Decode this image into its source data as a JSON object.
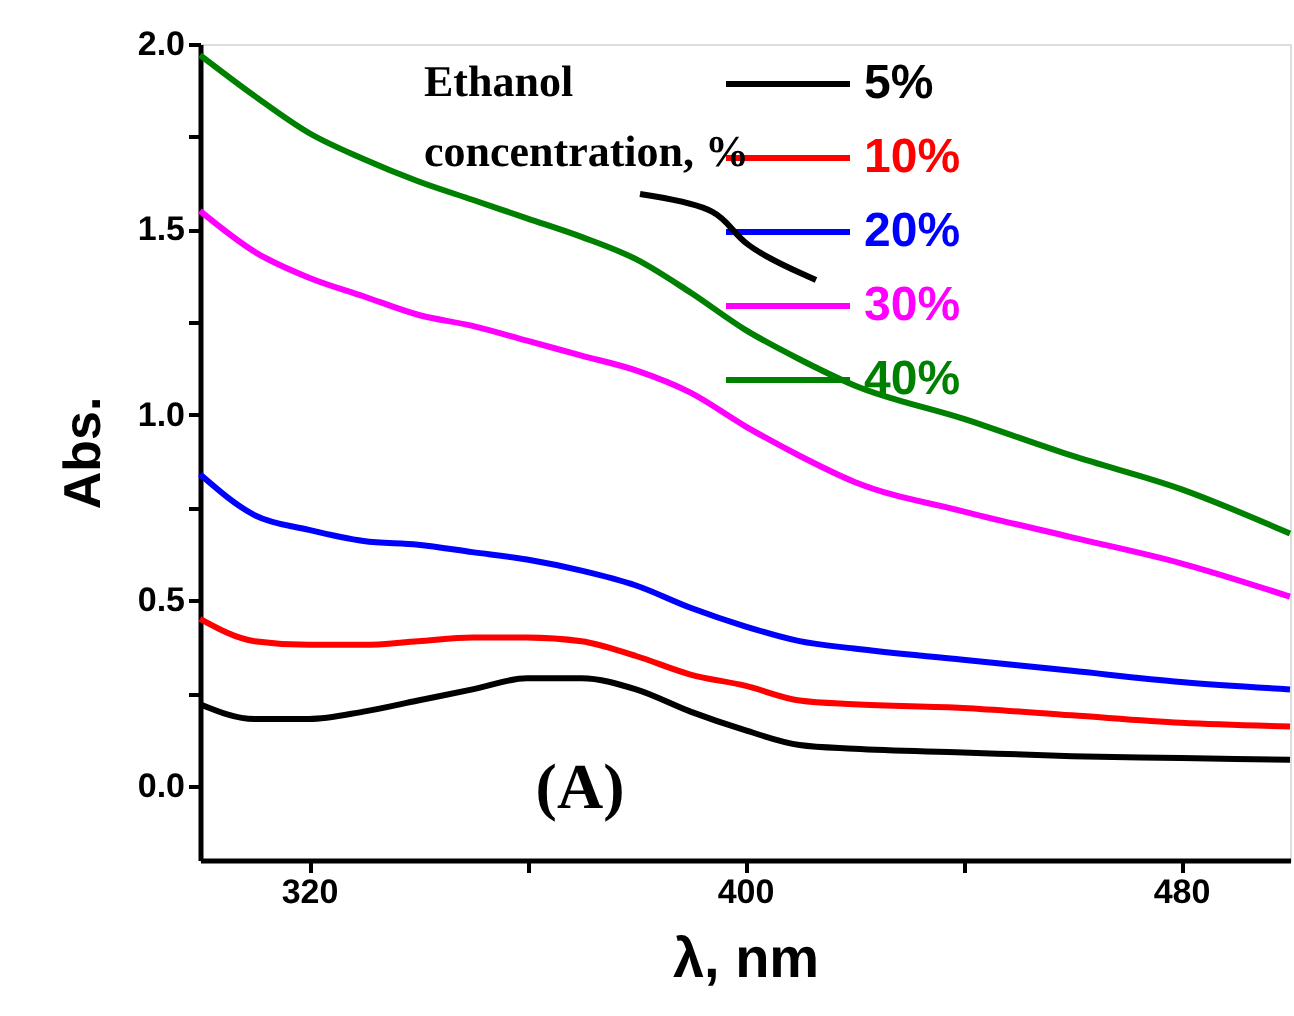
{
  "chart_data": {
    "type": "line",
    "xlabel": "λ, nm",
    "ylabel": "Abs.",
    "annotations": [
      "Ethanol\nconcentration, %",
      "(A)"
    ],
    "x": [
      300,
      310,
      320,
      330,
      340,
      350,
      360,
      370,
      380,
      390,
      400,
      410,
      420,
      440,
      460,
      480,
      500
    ],
    "series": [
      {
        "name": "5%",
        "color": "#000000",
        "values": [
          0.22,
          0.18,
          0.18,
          0.2,
          0.23,
          0.26,
          0.29,
          0.29,
          0.26,
          0.2,
          0.15,
          0.11,
          0.1,
          0.09,
          0.08,
          0.075,
          0.07
        ]
      },
      {
        "name": "10%",
        "color": "#ff0000",
        "values": [
          0.45,
          0.39,
          0.38,
          0.38,
          0.39,
          0.4,
          0.4,
          0.39,
          0.35,
          0.3,
          0.27,
          0.23,
          0.22,
          0.21,
          0.19,
          0.17,
          0.16
        ]
      },
      {
        "name": "20%",
        "color": "#0000ff",
        "values": [
          0.84,
          0.73,
          0.69,
          0.66,
          0.65,
          0.63,
          0.61,
          0.58,
          0.54,
          0.48,
          0.43,
          0.39,
          0.37,
          0.34,
          0.31,
          0.28,
          0.26
        ]
      },
      {
        "name": "30%",
        "color": "#ff00ff",
        "values": [
          1.55,
          1.44,
          1.37,
          1.32,
          1.27,
          1.24,
          1.2,
          1.16,
          1.12,
          1.06,
          0.97,
          0.89,
          0.82,
          0.74,
          0.67,
          0.6,
          0.51
        ]
      },
      {
        "name": "40%",
        "color": "#008000",
        "values": [
          1.97,
          1.86,
          1.76,
          1.69,
          1.63,
          1.58,
          1.53,
          1.48,
          1.42,
          1.33,
          1.23,
          1.15,
          1.08,
          0.99,
          0.89,
          0.8,
          0.68
        ]
      }
    ],
    "xlim": [
      300,
      500
    ],
    "xticks": [
      320,
      {
        "value": 360,
        "label": null
      },
      400,
      {
        "value": 440,
        "label": null
      },
      480
    ],
    "ylim": [
      -0.2,
      2.0
    ],
    "yticks": [
      {
        "value": 0,
        "label": "0.0"
      },
      {
        "value": 0.25,
        "label": null
      },
      0.5,
      {
        "value": 0.75,
        "label": null
      },
      {
        "value": 1,
        "label": "1.0"
      },
      {
        "value": 1.25,
        "label": null
      },
      1.5,
      {
        "value": 1.75,
        "label": null
      },
      {
        "value": 2,
        "label": "2.0"
      }
    ],
    "grid": false,
    "legend": "top right",
    "marker": "none",
    "line_style": "solid"
  }
}
